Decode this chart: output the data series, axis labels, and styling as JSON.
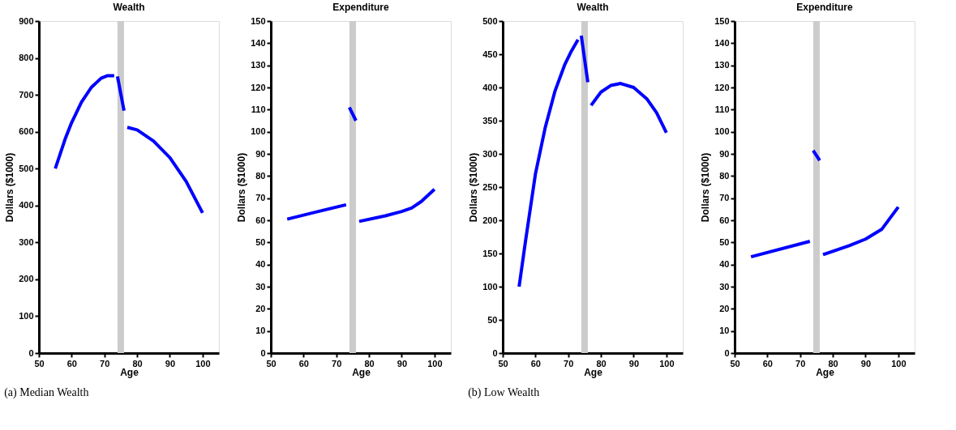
{
  "chart_data": [
    {
      "type": "line",
      "title": "Wealth",
      "xlabel": "Age",
      "ylabel": "Dollars ($1000)",
      "xlim": [
        50,
        105
      ],
      "xticks": [
        50,
        60,
        70,
        80,
        90,
        100
      ],
      "ylim": [
        0,
        900
      ],
      "yticks": [
        0,
        100,
        200,
        300,
        400,
        500,
        600,
        700,
        800,
        900
      ],
      "grid": false,
      "marker": "none",
      "line_style": "solid",
      "annotations": [
        "(a) Median Wealth"
      ],
      "bands": [
        {
          "axis": "x",
          "from": 74,
          "to": 76,
          "color": "#cccccc"
        }
      ],
      "series": [
        {
          "color": "#0000ff",
          "x": [
            55,
            58,
            60,
            63,
            66,
            69,
            71,
            73
          ],
          "values": [
            500,
            580,
            625,
            680,
            720,
            745,
            752,
            752
          ]
        },
        {
          "color": "#0000ff",
          "x": [
            74,
            76
          ],
          "values": [
            750,
            657
          ]
        },
        {
          "color": "#0000ff",
          "x": [
            77,
            80,
            85,
            90,
            95,
            100
          ],
          "values": [
            612,
            605,
            575,
            530,
            465,
            380
          ]
        }
      ]
    },
    {
      "type": "line",
      "title": "Expenditure",
      "xlabel": "Age",
      "ylabel": "Dollars ($1000)",
      "xlim": [
        50,
        105
      ],
      "xticks": [
        50,
        60,
        70,
        80,
        90,
        100
      ],
      "ylim": [
        0,
        150
      ],
      "yticks": [
        0,
        10,
        20,
        30,
        40,
        50,
        60,
        70,
        80,
        90,
        100,
        110,
        120,
        130,
        140,
        150
      ],
      "grid": false,
      "marker": "none",
      "line_style": "solid",
      "bands": [
        {
          "axis": "x",
          "from": 74,
          "to": 76,
          "color": "#cccccc"
        }
      ],
      "series": [
        {
          "color": "#0000ff",
          "x": [
            55,
            64,
            73
          ],
          "values": [
            60.5,
            63.8,
            67
          ]
        },
        {
          "color": "#0000ff",
          "x": [
            74,
            76
          ],
          "values": [
            111,
            105
          ]
        },
        {
          "color": "#0000ff",
          "x": [
            77,
            85,
            90,
            93,
            96,
            100
          ],
          "values": [
            59.5,
            62,
            64,
            65.5,
            68.5,
            74
          ]
        }
      ]
    },
    {
      "type": "line",
      "title": "Wealth",
      "xlabel": "Age",
      "ylabel": "Dollars ($1000)",
      "xlim": [
        50,
        105
      ],
      "xticks": [
        50,
        60,
        70,
        80,
        90,
        100
      ],
      "ylim": [
        0,
        500
      ],
      "yticks": [
        0,
        50,
        100,
        150,
        200,
        250,
        300,
        350,
        400,
        450,
        500
      ],
      "grid": false,
      "marker": "none",
      "line_style": "solid",
      "annotations": [
        "(b) Low Wealth"
      ],
      "bands": [
        {
          "axis": "x",
          "from": 74,
          "to": 76,
          "color": "#cccccc"
        }
      ],
      "series": [
        {
          "color": "#0000ff",
          "x": [
            55,
            57,
            60,
            63,
            66,
            69,
            71,
            73
          ],
          "values": [
            100,
            170,
            270,
            340,
            395,
            435,
            455,
            472
          ]
        },
        {
          "color": "#0000ff",
          "x": [
            74,
            76
          ],
          "values": [
            478,
            408
          ]
        },
        {
          "color": "#0000ff",
          "x": [
            77,
            80,
            83,
            86,
            90,
            94,
            97,
            100
          ],
          "values": [
            373,
            393,
            403,
            406,
            400,
            383,
            362,
            332
          ]
        }
      ]
    },
    {
      "type": "line",
      "title": "Expenditure",
      "xlabel": "Age",
      "ylabel": "Dollars ($1000)",
      "xlim": [
        50,
        105
      ],
      "xticks": [
        50,
        60,
        70,
        80,
        90,
        100
      ],
      "ylim": [
        0,
        150
      ],
      "yticks": [
        0,
        10,
        20,
        30,
        40,
        50,
        60,
        70,
        80,
        90,
        100,
        110,
        120,
        130,
        140,
        150
      ],
      "grid": false,
      "marker": "none",
      "line_style": "solid",
      "bands": [
        {
          "axis": "x",
          "from": 74,
          "to": 76,
          "color": "#cccccc"
        }
      ],
      "series": [
        {
          "color": "#0000ff",
          "x": [
            55,
            73
          ],
          "values": [
            43.5,
            50.5
          ]
        },
        {
          "color": "#0000ff",
          "x": [
            74,
            76
          ],
          "values": [
            91.5,
            87
          ]
        },
        {
          "color": "#0000ff",
          "x": [
            77,
            85,
            90,
            95,
            100
          ],
          "values": [
            44.5,
            48.5,
            51.5,
            56,
            66
          ]
        }
      ]
    }
  ]
}
